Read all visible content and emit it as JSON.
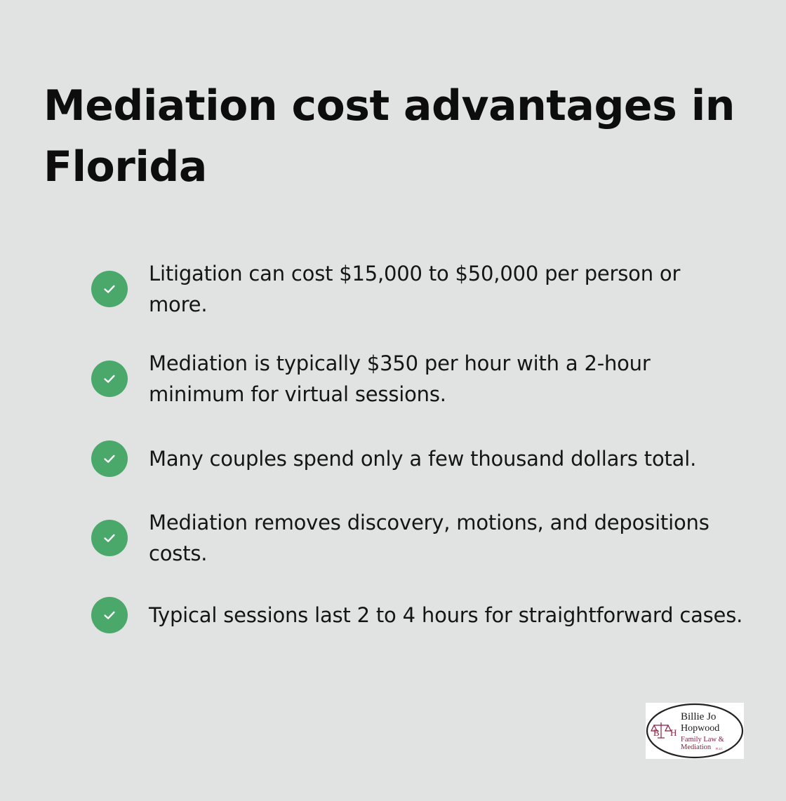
{
  "title": "Mediation cost advantages in Florida",
  "items": [
    {
      "text": "Litigation can cost $15,000 to $50,000 per person or more."
    },
    {
      "text": "Mediation is typically $350 per hour with a 2-hour minimum for virtual sessions."
    },
    {
      "text": "Many couples spend only a few thousand dollars total."
    },
    {
      "text": "Mediation removes discovery, motions, and depositions costs."
    },
    {
      "text": "Typical sessions last 2 to 4 hours for straightforward cases."
    }
  ],
  "icon": "check-circle-icon",
  "colors": {
    "background": "#e1e3e2",
    "check": "#4aa86b",
    "title": "#0d0d0d",
    "logo_accent": "#8b1f3f"
  },
  "logo": {
    "name_line1": "Billie Jo",
    "name_line2": "Hopwood",
    "tagline_line1": "Family Law &",
    "tagline_line2": "Mediation",
    "suffix": "PLLC",
    "monogram_left": "B",
    "monogram_right": "H"
  }
}
